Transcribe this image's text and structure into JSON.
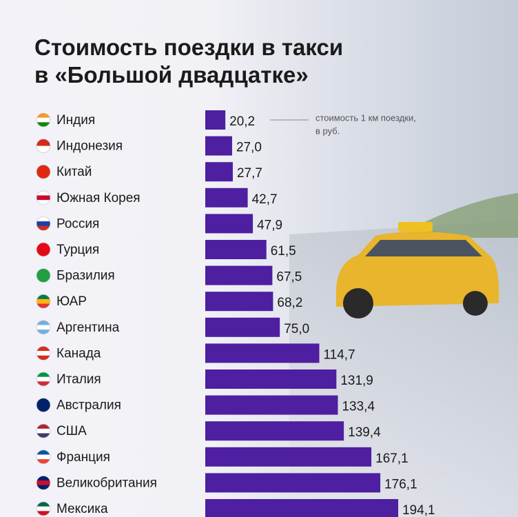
{
  "chart_data": {
    "type": "bar",
    "orientation": "horizontal",
    "title": [
      "Стоимость поездки в такси",
      "в «Большой двадцатке»"
    ],
    "annotation": [
      "стоимость 1 км поездки,",
      "в руб."
    ],
    "categories": [
      "Индия",
      "Индонезия",
      "Китай",
      "Южная Корея",
      "Россия",
      "Турция",
      "Бразилия",
      "ЮАР",
      "Аргентина",
      "Канада",
      "Италия",
      "Австралия",
      "США",
      "Франция",
      "Великобритания",
      "Мексика"
    ],
    "values": [
      20.2,
      27.0,
      27.7,
      42.7,
      47.9,
      61.5,
      67.5,
      68.2,
      75.0,
      114.7,
      131.9,
      133.4,
      139.4,
      167.1,
      176.1,
      194.1
    ],
    "value_labels": [
      "20,2",
      "27,0",
      "27,7",
      "42,7",
      "47,9",
      "61,5",
      "67,5",
      "68,2",
      "75,0",
      "114,7",
      "131,9",
      "133,4",
      "139,4",
      "167,1",
      "176,1",
      "194,1"
    ],
    "color": "#4e1fa0"
  }
}
